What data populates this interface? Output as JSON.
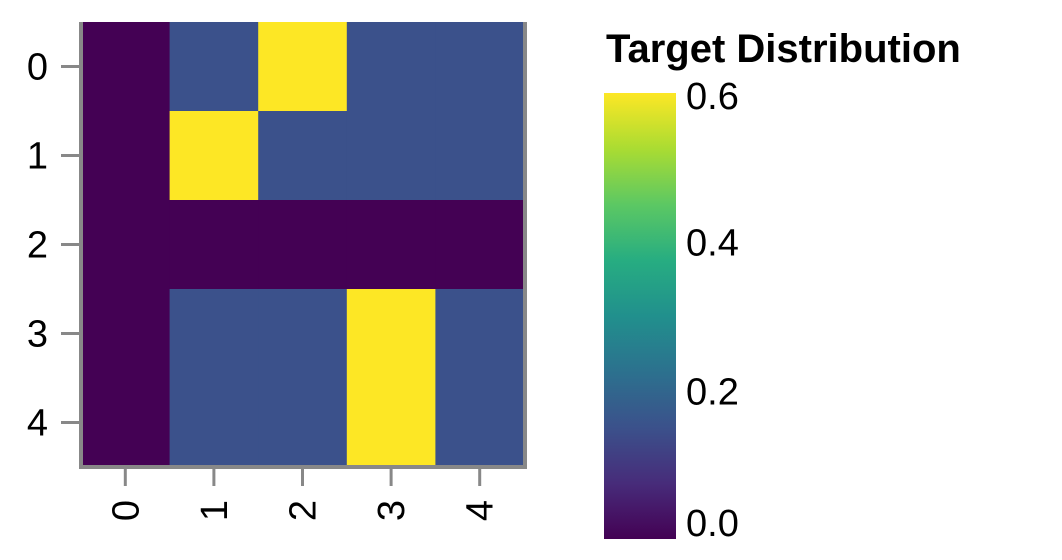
{
  "chart_data": {
    "type": "heatmap",
    "title": "",
    "xlabel": "",
    "ylabel": "",
    "x_categories": [
      "0",
      "1",
      "2",
      "3",
      "4"
    ],
    "y_categories": [
      "0",
      "1",
      "2",
      "3",
      "4"
    ],
    "values": [
      [
        0.0,
        0.15,
        0.6,
        0.15,
        0.15
      ],
      [
        0.0,
        0.6,
        0.15,
        0.15,
        0.15
      ],
      [
        0.0,
        0.0,
        0.0,
        0.0,
        0.0
      ],
      [
        0.0,
        0.15,
        0.15,
        0.6,
        0.15
      ],
      [
        0.0,
        0.15,
        0.15,
        0.6,
        0.15
      ]
    ],
    "colorscale": "viridis",
    "colorbar": {
      "title": "Target Distribution",
      "range": [
        0.0,
        0.6
      ],
      "ticks": [
        "0.0",
        "0.2",
        "0.4",
        "0.6"
      ],
      "tick_values": [
        0.0,
        0.2,
        0.4,
        0.6
      ],
      "placement": "right"
    },
    "x_tick_rotation": "vertical",
    "grid": false
  }
}
